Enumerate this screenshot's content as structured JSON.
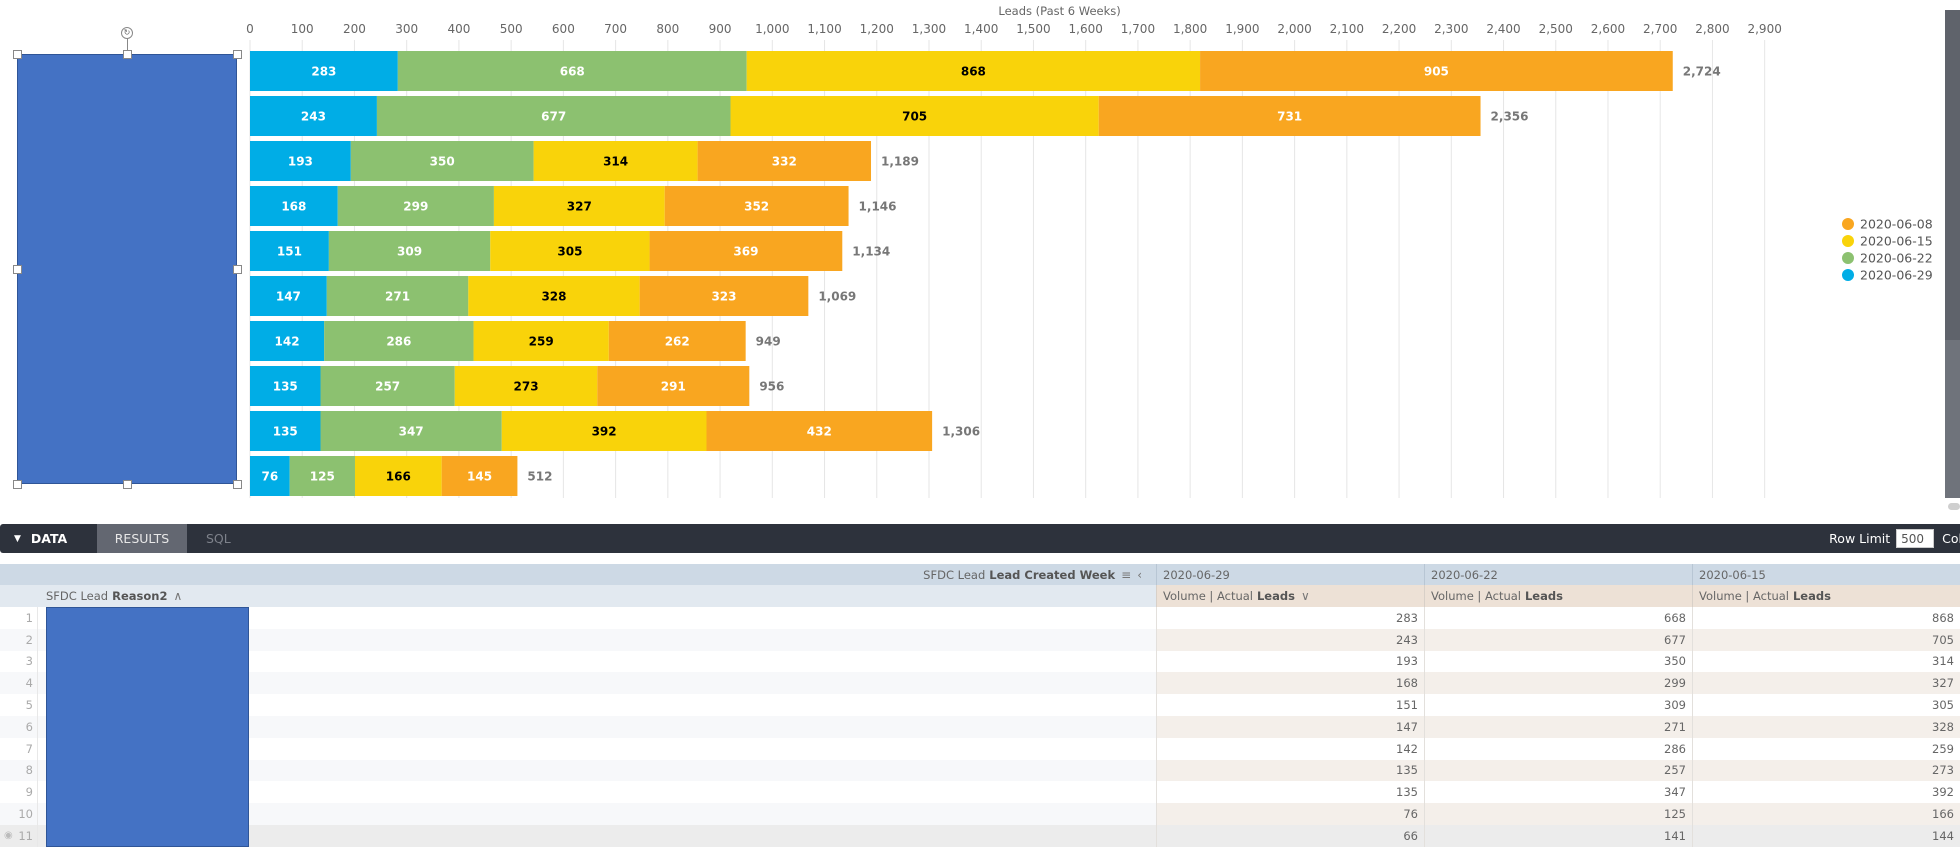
{
  "chart_data": {
    "type": "bar",
    "orientation": "horizontal",
    "stacked": true,
    "title": "",
    "xlabel": "Leads (Past 6 Weeks)",
    "ylabel": "",
    "xlim": [
      0,
      2900
    ],
    "x_ticks": [
      "0",
      "100",
      "200",
      "300",
      "400",
      "500",
      "600",
      "700",
      "800",
      "900",
      "1,000",
      "1,100",
      "1,200",
      "1,300",
      "1,400",
      "1,500",
      "1,600",
      "1,700",
      "1,800",
      "1,900",
      "2,000",
      "2,100",
      "2,200",
      "2,300",
      "2,400",
      "2,500",
      "2,600",
      "2,700",
      "2,800",
      "2,900"
    ],
    "grid": true,
    "legend_position": "right",
    "categories_redacted": true,
    "series": [
      {
        "name": "2020-06-29",
        "color": "#00ade6",
        "label_color": "#ffffff",
        "values": [
          283,
          243,
          193,
          168,
          151,
          147,
          142,
          135,
          135,
          76
        ]
      },
      {
        "name": "2020-06-22",
        "color": "#8cc170",
        "label_color": "#ffffff",
        "values": [
          668,
          677,
          350,
          299,
          309,
          271,
          286,
          257,
          347,
          125
        ]
      },
      {
        "name": "2020-06-15",
        "color": "#f9d30a",
        "label_color": "#000000",
        "values": [
          868,
          705,
          314,
          327,
          305,
          328,
          259,
          273,
          392,
          166
        ]
      },
      {
        "name": "2020-06-08",
        "color": "#f9a620",
        "label_color": "#ffffff",
        "values": [
          905,
          731,
          332,
          352,
          369,
          323,
          262,
          291,
          432,
          145
        ]
      }
    ],
    "totals": [
      "2,724",
      "2,356",
      "1,189",
      "1,146",
      "1,134",
      "1,069",
      "949",
      "956",
      "1,306",
      "512"
    ],
    "legend": [
      "2020-06-08",
      "2020-06-15",
      "2020-06-22",
      "2020-06-29"
    ]
  },
  "toolbar": {
    "data_label": "DATA",
    "tabs": [
      "RESULTS",
      "SQL"
    ],
    "active_tab": "RESULTS",
    "row_limit_label": "Row Limit",
    "row_limit_value": "500",
    "truncated_label": "Col"
  },
  "table": {
    "pivot_header_prefix": "SFDC Lead",
    "pivot_header_field": "Lead Created Week",
    "dimension_header_prefix": "SFDC Lead",
    "dimension_header_field": "Reason2",
    "sort_dimension": "∧",
    "sort_measure": "∨",
    "columns": [
      {
        "date": "2020-06-29",
        "measure_prefix": "Volume | Actual",
        "measure_field": "Leads"
      },
      {
        "date": "2020-06-22",
        "measure_prefix": "Volume | Actual",
        "measure_field": "Leads"
      },
      {
        "date": "2020-06-15",
        "measure_prefix": "Volume | Actual",
        "measure_field": "Leads"
      }
    ],
    "rows": [
      {
        "n": "1",
        "values": [
          "283",
          "668",
          "868"
        ]
      },
      {
        "n": "2",
        "values": [
          "243",
          "677",
          "705"
        ]
      },
      {
        "n": "3",
        "values": [
          "193",
          "350",
          "314"
        ]
      },
      {
        "n": "4",
        "values": [
          "168",
          "299",
          "327"
        ]
      },
      {
        "n": "5",
        "values": [
          "151",
          "309",
          "305"
        ]
      },
      {
        "n": "6",
        "values": [
          "147",
          "271",
          "328"
        ]
      },
      {
        "n": "7",
        "values": [
          "142",
          "286",
          "259"
        ]
      },
      {
        "n": "8",
        "values": [
          "135",
          "257",
          "273"
        ]
      },
      {
        "n": "9",
        "values": [
          "135",
          "347",
          "392"
        ]
      },
      {
        "n": "10",
        "values": [
          "76",
          "125",
          "166"
        ]
      },
      {
        "n": "11",
        "values": [
          "66",
          "141",
          "144"
        ]
      }
    ]
  }
}
